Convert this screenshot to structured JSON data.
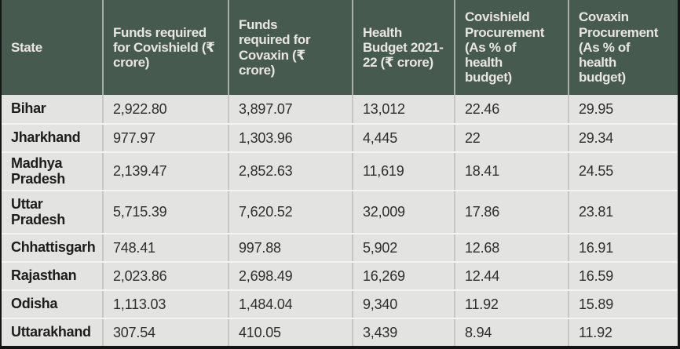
{
  "colors": {
    "header_bg": "#475a4f",
    "header_text": "#e8e6e1",
    "header_column_separator": "#a9b0a9",
    "row_bg": "#e3e3e2",
    "row_separator": "#f4f4f3",
    "column_separator": "#c6c6c5",
    "state_text": "#1d1d1d",
    "value_text": "#2e2e2e",
    "outer_border": "#141414"
  },
  "chart_data": {
    "type": "table",
    "title": "",
    "columns": [
      "State",
      "Funds required for Covishield (₹ crore)",
      "Funds required for Covaxin (₹ crore)",
      "Health Budget 2021-22 (₹ crore)",
      "Covishield Procurement (As % of health budget)",
      "Covaxin Procurement (As % of health budget)"
    ],
    "rows": [
      [
        "Bihar",
        "2,922.80",
        "3,897.07",
        "13,012",
        "22.46",
        "29.95"
      ],
      [
        "Jharkhand",
        "977.97",
        "1,303.96",
        "4,445",
        "22",
        "29.34"
      ],
      [
        "Madhya Pradesh",
        "2,139.47",
        "2,852.63",
        "11,619",
        "18.41",
        "24.55"
      ],
      [
        "Uttar Pradesh",
        "5,715.39",
        "7,620.52",
        "32,009",
        "17.86",
        "23.81"
      ],
      [
        "Chhattisgarh",
        "748.41",
        "997.88",
        "5,902",
        "12.68",
        "16.91"
      ],
      [
        "Rajasthan",
        "2,023.86",
        "2,698.49",
        "16,269",
        "12.44",
        "16.59"
      ],
      [
        "Odisha",
        "1,113.03",
        "1,484.04",
        "9,340",
        "11.92",
        "15.89"
      ],
      [
        "Uttarakhand",
        "307.54",
        "410.05",
        "3,439",
        "8.94",
        "11.92"
      ]
    ]
  }
}
